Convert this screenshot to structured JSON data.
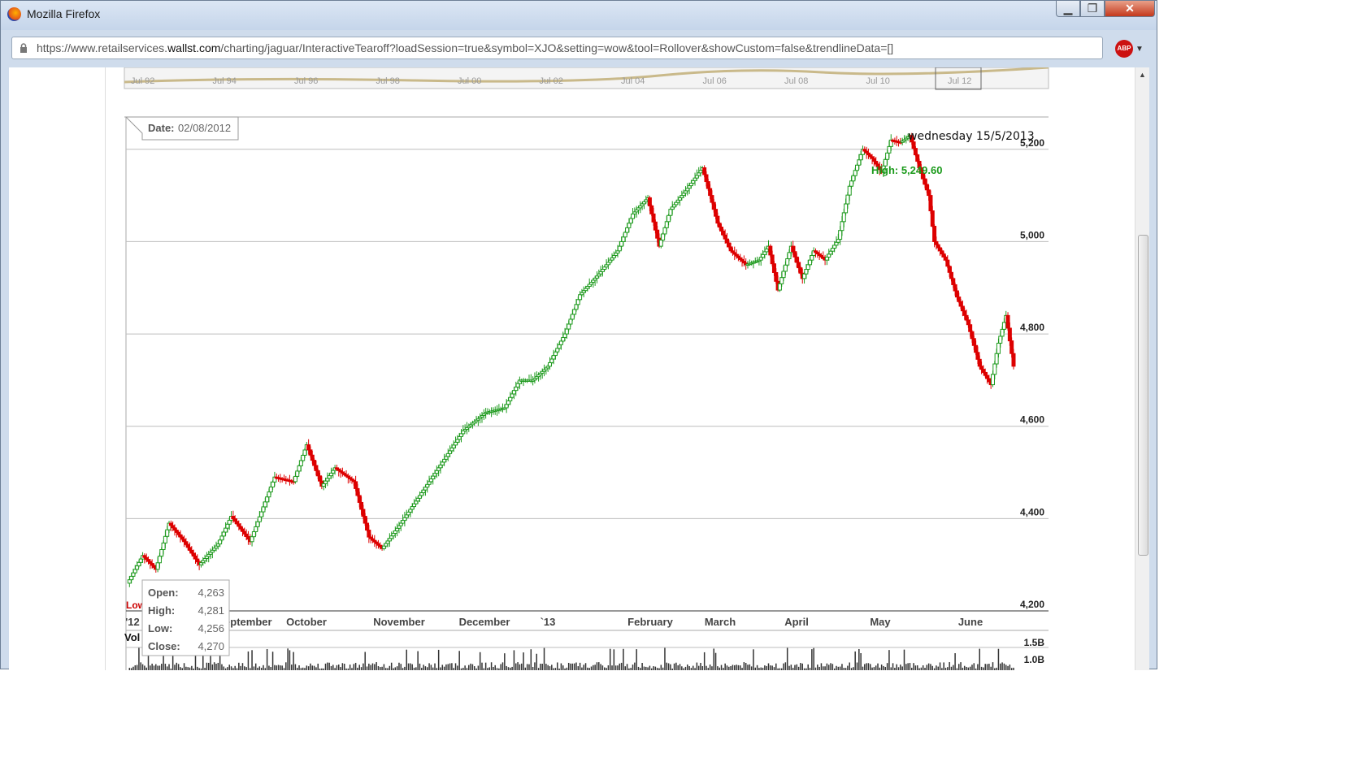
{
  "window": {
    "title": "Mozilla Firefox",
    "min_label": "▁",
    "max_label": "❐",
    "close_label": "✕"
  },
  "urlbar": {
    "url_prefix": "https://www.retailservices.",
    "url_domain": "wallst.com",
    "url_suffix": "/charting/jaguar/InteractiveTearoff?loadSession=true&symbol=XJO&setting=wow&tool=Rollover&showCustom=false&trendlineData=[]",
    "lock_icon": "lock-icon",
    "adblock_label": "ABP"
  },
  "navigator": {
    "labels": [
      "Jul 92",
      "Jul 94",
      "Jul 96",
      "Jul 98",
      "Jul 00",
      "Jul 02",
      "Jul 04",
      "Jul 06",
      "Jul 08",
      "Jul 10",
      "Jul 12"
    ]
  },
  "annotations": {
    "date_label": "Date:",
    "date_value": "02/08/2012",
    "note": "wednesday 15/5/2013",
    "high_label": "High: 5,249.60",
    "low_label": "Low",
    "volume_label": "Vol"
  },
  "tooltip": {
    "rows": [
      {
        "label": "Open:",
        "value": "4,263"
      },
      {
        "label": "High:",
        "value": "4,281"
      },
      {
        "label": "Low:",
        "value": "4,256"
      },
      {
        "label": "Close:",
        "value": "4,270"
      }
    ]
  },
  "chart_data": {
    "type": "candlestick",
    "y_ticks": [
      "5,200",
      "5,000",
      "4,800",
      "4,600",
      "4,400",
      "4,200"
    ],
    "y_tick_values": [
      5200,
      5000,
      4800,
      4600,
      4400,
      4200
    ],
    "ylim": [
      4200,
      5270
    ],
    "x_labels": [
      "'12",
      "September",
      "October",
      "November",
      "December",
      "`13",
      "February",
      "March",
      "April",
      "May",
      "June"
    ],
    "volume_ticks": [
      "1.5B",
      "1.0B"
    ],
    "colors": {
      "up": "#1e9a1e",
      "down": "#dd0000",
      "high_label": "#1a9a1a",
      "grid": "#bdbdbd"
    },
    "anchors": [
      [
        0,
        4260
      ],
      [
        8,
        4320
      ],
      [
        15,
        4290
      ],
      [
        22,
        4390
      ],
      [
        30,
        4350
      ],
      [
        38,
        4300
      ],
      [
        48,
        4345
      ],
      [
        55,
        4405
      ],
      [
        65,
        4350
      ],
      [
        78,
        4490
      ],
      [
        88,
        4480
      ],
      [
        95,
        4560
      ],
      [
        103,
        4470
      ],
      [
        110,
        4510
      ],
      [
        120,
        4480
      ],
      [
        128,
        4360
      ],
      [
        135,
        4335
      ],
      [
        145,
        4390
      ],
      [
        155,
        4450
      ],
      [
        165,
        4510
      ],
      [
        178,
        4590
      ],
      [
        190,
        4630
      ],
      [
        200,
        4640
      ],
      [
        208,
        4700
      ],
      [
        215,
        4700
      ],
      [
        223,
        4730
      ],
      [
        232,
        4800
      ],
      [
        240,
        4885
      ],
      [
        250,
        4930
      ],
      [
        260,
        4980
      ],
      [
        268,
        5060
      ],
      [
        276,
        5095
      ],
      [
        282,
        4990
      ],
      [
        288,
        5070
      ],
      [
        296,
        5110
      ],
      [
        305,
        5160
      ],
      [
        313,
        5040
      ],
      [
        320,
        4980
      ],
      [
        328,
        4950
      ],
      [
        335,
        4960
      ],
      [
        340,
        4990
      ],
      [
        345,
        4895
      ],
      [
        352,
        4990
      ],
      [
        358,
        4920
      ],
      [
        364,
        4980
      ],
      [
        370,
        4960
      ],
      [
        377,
        5005
      ],
      [
        383,
        5120
      ],
      [
        390,
        5200
      ],
      [
        395,
        5180
      ],
      [
        400,
        5150
      ],
      [
        405,
        5220
      ],
      [
        410,
        5215
      ],
      [
        415,
        5230
      ],
      [
        420,
        5160
      ],
      [
        425,
        5100
      ],
      [
        428,
        5000
      ],
      [
        434,
        4960
      ],
      [
        440,
        4880
      ],
      [
        446,
        4820
      ],
      [
        452,
        4730
      ],
      [
        458,
        4690
      ],
      [
        462,
        4780
      ],
      [
        466,
        4840
      ],
      [
        470,
        4730
      ]
    ]
  }
}
